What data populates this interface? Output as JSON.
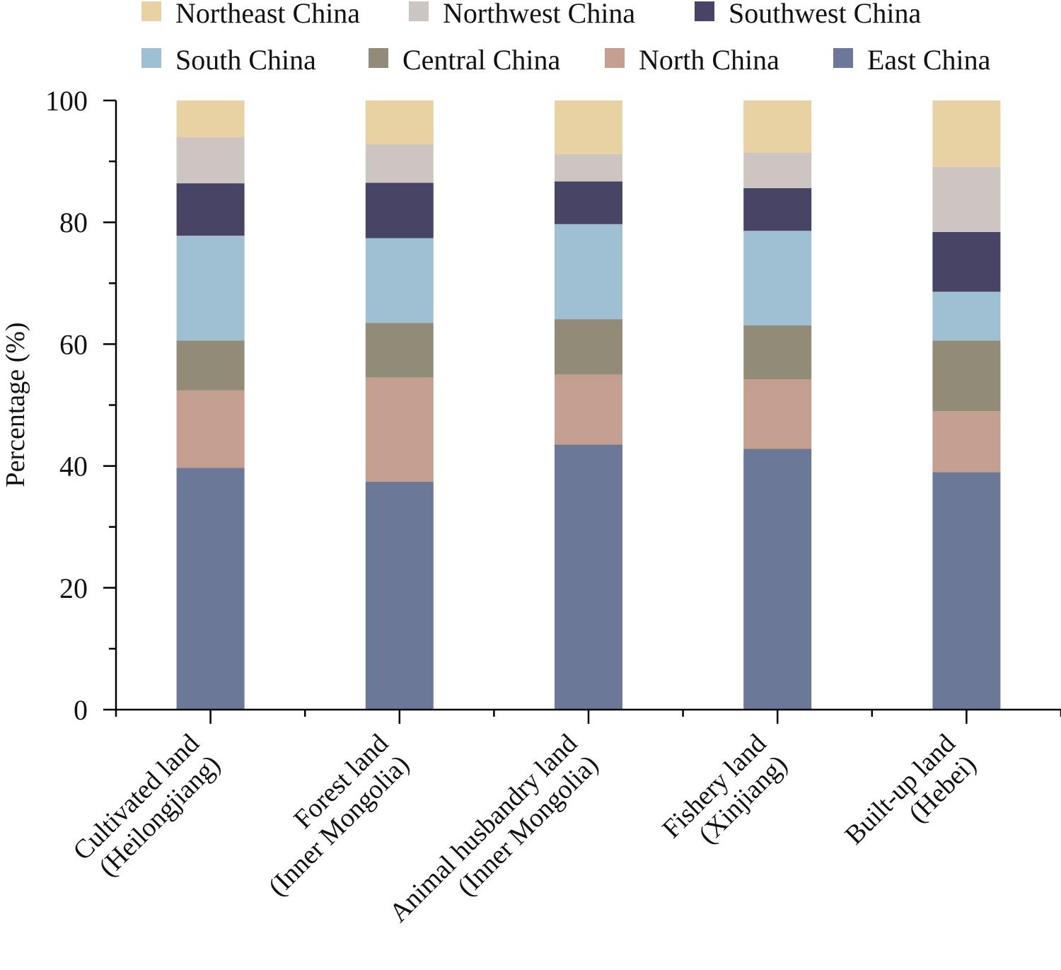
{
  "chart_data": {
    "type": "bar",
    "stacked": true,
    "categories": [
      [
        "Cultivated land",
        "(Heilongjiang)"
      ],
      [
        "Forest land",
        "(Inner Mongolia)"
      ],
      [
        "Animal husbandry land",
        "(Inner Mongolia)"
      ],
      [
        "Fishery land",
        "(Xinjiang)"
      ],
      [
        "Built-up land",
        "(Hebei)"
      ]
    ],
    "series": [
      {
        "name": "East China",
        "color": "#6b7898",
        "values": [
          39.7,
          37.4,
          43.5,
          42.8,
          39.0
        ]
      },
      {
        "name": "North China",
        "color": "#c49e8f",
        "values": [
          12.7,
          17.1,
          11.5,
          11.4,
          10.0
        ]
      },
      {
        "name": "Central China",
        "color": "#928b77",
        "values": [
          8.2,
          9.0,
          9.1,
          8.9,
          11.6
        ]
      },
      {
        "name": "South China",
        "color": "#9fc0d2",
        "values": [
          17.2,
          13.9,
          15.6,
          15.5,
          8.0
        ]
      },
      {
        "name": "Southwest China",
        "color": "#474466",
        "values": [
          8.6,
          9.1,
          7.0,
          7.0,
          9.8
        ]
      },
      {
        "name": "Northwest China",
        "color": "#cdc5c1",
        "values": [
          7.6,
          6.3,
          4.5,
          5.8,
          10.7
        ]
      },
      {
        "name": "Northeast China",
        "color": "#e8d1a3",
        "values": [
          6.0,
          7.2,
          8.8,
          8.6,
          10.9
        ]
      }
    ],
    "legend_order": [
      "Northeast China",
      "Northwest China",
      "Southwest China",
      "South China",
      "Central China",
      "North China",
      "East China"
    ],
    "legend_position": "top",
    "ylabel": "Percentage (%)",
    "xlabel": "",
    "ylim": [
      0,
      100
    ],
    "yticks": [
      "0",
      "20",
      "40",
      "60",
      "80",
      "100"
    ],
    "grid": false
  }
}
